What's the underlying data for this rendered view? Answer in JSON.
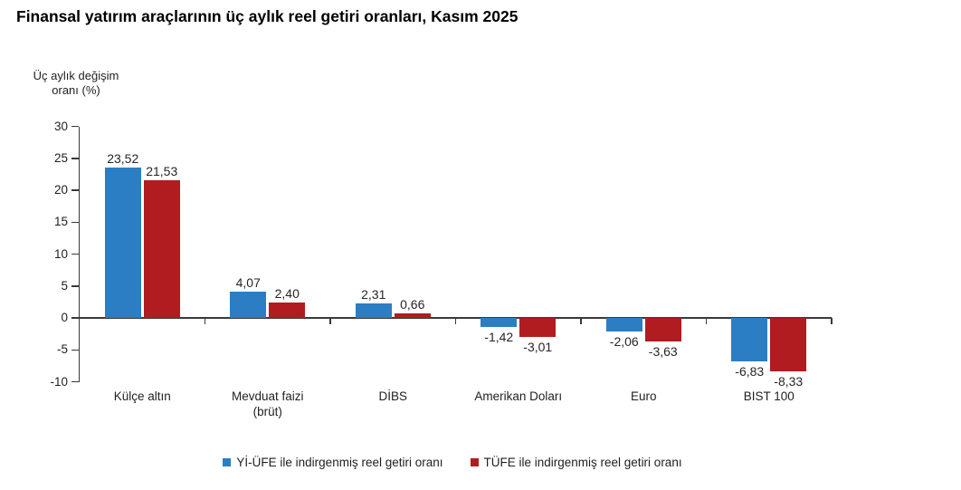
{
  "title": "Finansal yatırım araçlarının üç aylık reel getiri oranları, Kasım 2025",
  "y_axis_title": "Üç aylık değişim\noranı (%)",
  "colors": {
    "series1_blue": "#2B7EC3",
    "series2_red": "#B11C20",
    "axis": "#3a3a3a",
    "text": "#1f1f1f",
    "background": "#ffffff"
  },
  "legend": {
    "items": [
      {
        "label": "Yİ-ÜFE ile indirgenmiş reel getiri oranı",
        "color": "#2B7EC3"
      },
      {
        "label": "TÜFE ile indirgenmiş reel getiri oranı",
        "color": "#B11C20"
      }
    ]
  },
  "chart_data": {
    "type": "bar",
    "title": "Finansal yatırım araçlarının üç aylık reel getiri oranları, Kasım 2025",
    "ylabel": "Üç aylık değişim oranı (%)",
    "xlabel": "",
    "categories": [
      "Külçe altın",
      "Mevduat faizi\n(brüt)",
      "DİBS",
      "Amerikan Doları",
      "Euro",
      "BIST 100"
    ],
    "series": [
      {
        "name": "Yİ-ÜFE ile indirgenmiş reel getiri oranı",
        "color": "#2B7EC3",
        "values": [
          23.52,
          4.07,
          2.31,
          -1.42,
          -2.06,
          -6.83
        ],
        "labels": [
          "23,52",
          "4,07",
          "2,31",
          "-1,42",
          "-2,06",
          "-6,83"
        ]
      },
      {
        "name": "TÜFE ile indirgenmiş reel getiri oranı",
        "color": "#B11C20",
        "values": [
          21.53,
          2.4,
          0.66,
          -3.01,
          -3.63,
          -8.33
        ],
        "labels": [
          "21,53",
          "2,40",
          "0,66",
          "-3,01",
          "-3,63",
          "-8,33"
        ]
      }
    ],
    "ylim": [
      -10,
      30
    ],
    "yticks": [
      30,
      25,
      20,
      15,
      10,
      5,
      0,
      -5,
      -10
    ],
    "grid": false,
    "legend_position": "bottom"
  }
}
